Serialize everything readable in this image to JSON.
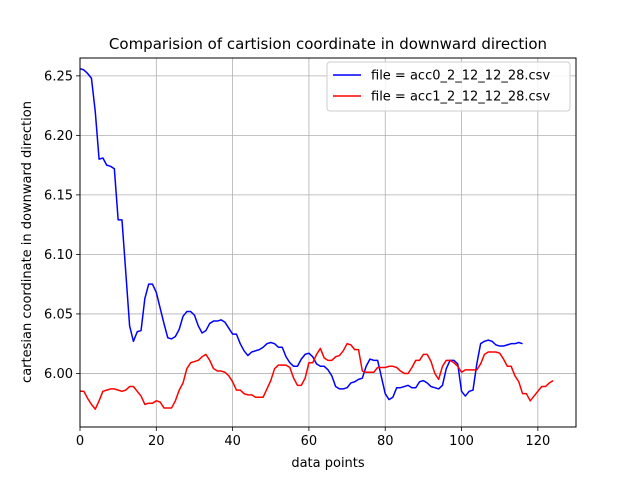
{
  "chart_data": {
    "type": "line",
    "title": "Comparision of cartision coordinate in downward direction",
    "xlabel": "data points",
    "ylabel": "cartesian coordinate in downward direction",
    "xlim": [
      0,
      130
    ],
    "ylim": [
      5.955,
      6.265
    ],
    "xticks": [
      0,
      20,
      40,
      60,
      80,
      100,
      120
    ],
    "yticks": [
      6.0,
      6.05,
      6.1,
      6.15,
      6.2,
      6.25
    ],
    "xtick_labels": [
      "0",
      "20",
      "40",
      "60",
      "80",
      "100",
      "120"
    ],
    "ytick_labels": [
      "6.00",
      "6.05",
      "6.10",
      "6.15",
      "6.20",
      "6.25"
    ],
    "grid": true,
    "legend_position": "top-right",
    "series": [
      {
        "name": "file = acc0_2_12_12_28.csv",
        "color": "#0000ff",
        "x": [
          0,
          1,
          2,
          3,
          4,
          5,
          6,
          7,
          8,
          9,
          10,
          11,
          12,
          13,
          14,
          15,
          16,
          17,
          18,
          19,
          20,
          21,
          22,
          23,
          24,
          25,
          26,
          27,
          28,
          29,
          30,
          31,
          32,
          33,
          34,
          35,
          36,
          37,
          38,
          39,
          40,
          41,
          42,
          43,
          44,
          45,
          46,
          47,
          48,
          49,
          50,
          51,
          52,
          53,
          54,
          55,
          56,
          57,
          58,
          59,
          60,
          61,
          62,
          63,
          64,
          65,
          66,
          67,
          68,
          69,
          70,
          71,
          72,
          73,
          74,
          75,
          76,
          77,
          78,
          79,
          80,
          81,
          82,
          83,
          84,
          85,
          86,
          87,
          88,
          89,
          90,
          91,
          92,
          93,
          94,
          95,
          96,
          97,
          98,
          99,
          100,
          101,
          102,
          103,
          104,
          105,
          106,
          107,
          108,
          109,
          110,
          111,
          112,
          113,
          114,
          115,
          116
        ],
        "y": [
          6.256,
          6.255,
          6.252,
          6.248,
          6.22,
          6.18,
          6.181,
          6.175,
          6.174,
          6.172,
          6.129,
          6.129,
          6.085,
          6.04,
          6.027,
          6.035,
          6.036,
          6.063,
          6.075,
          6.075,
          6.068,
          6.055,
          6.042,
          6.03,
          6.029,
          6.031,
          6.037,
          6.048,
          6.052,
          6.052,
          6.049,
          6.04,
          6.034,
          6.036,
          6.042,
          6.044,
          6.044,
          6.045,
          6.043,
          6.038,
          6.033,
          6.033,
          6.025,
          6.019,
          6.015,
          6.018,
          6.019,
          6.02,
          6.022,
          6.025,
          6.026,
          6.025,
          6.022,
          6.022,
          6.014,
          6.009,
          6.006,
          6.006,
          6.012,
          6.016,
          6.017,
          6.014,
          6.008,
          6.006,
          6.006,
          6.003,
          5.998,
          5.989,
          5.987,
          5.987,
          5.988,
          5.992,
          5.993,
          5.995,
          5.996,
          6.006,
          6.012,
          6.011,
          6.011,
          5.997,
          5.983,
          5.978,
          5.98,
          5.988,
          5.988,
          5.989,
          5.99,
          5.988,
          5.988,
          5.993,
          5.994,
          5.992,
          5.989,
          5.988,
          5.987,
          5.99,
          6.004,
          6.011,
          6.011,
          6.008,
          5.985,
          5.981,
          5.985,
          5.986,
          6.008,
          6.025,
          6.027,
          6.028,
          6.027,
          6.024,
          6.023,
          6.023,
          6.024,
          6.025,
          6.025,
          6.026,
          6.025
        ]
      },
      {
        "name": "file = acc1_2_12_12_28.csv",
        "color": "#ff0000",
        "x": [
          0,
          1,
          2,
          3,
          4,
          5,
          6,
          7,
          8,
          9,
          10,
          11,
          12,
          13,
          14,
          15,
          16,
          17,
          18,
          19,
          20,
          21,
          22,
          23,
          24,
          25,
          26,
          27,
          28,
          29,
          30,
          31,
          32,
          33,
          34,
          35,
          36,
          37,
          38,
          39,
          40,
          41,
          42,
          43,
          44,
          45,
          46,
          47,
          48,
          49,
          50,
          51,
          52,
          53,
          54,
          55,
          56,
          57,
          58,
          59,
          60,
          61,
          62,
          63,
          64,
          65,
          66,
          67,
          68,
          69,
          70,
          71,
          72,
          73,
          74,
          75,
          76,
          77,
          78,
          79,
          80,
          81,
          82,
          83,
          84,
          85,
          86,
          87,
          88,
          89,
          90,
          91,
          92,
          93,
          94,
          95,
          96,
          97,
          98,
          99,
          100,
          101,
          102,
          103,
          104,
          105,
          106,
          107,
          108,
          109,
          110,
          111,
          112,
          113,
          114,
          115,
          116,
          117,
          118,
          119,
          120,
          121,
          122,
          123,
          124
        ],
        "y": [
          5.985,
          5.985,
          5.979,
          5.974,
          5.97,
          5.977,
          5.985,
          5.986,
          5.987,
          5.987,
          5.986,
          5.985,
          5.986,
          5.989,
          5.989,
          5.985,
          5.981,
          5.974,
          5.975,
          5.975,
          5.977,
          5.976,
          5.971,
          5.971,
          5.971,
          5.977,
          5.986,
          5.992,
          6.004,
          6.009,
          6.01,
          6.011,
          6.014,
          6.016,
          6.011,
          6.004,
          6.002,
          6.002,
          6.001,
          5.998,
          5.993,
          5.986,
          5.986,
          5.983,
          5.982,
          5.982,
          5.98,
          5.98,
          5.98,
          5.987,
          5.994,
          6.004,
          6.007,
          6.007,
          6.007,
          6.005,
          5.996,
          5.99,
          5.99,
          5.996,
          6.009,
          6.009,
          6.016,
          6.021,
          6.013,
          6.011,
          6.011,
          6.014,
          6.015,
          6.019,
          6.025,
          6.024,
          6.02,
          6.02,
          6.002,
          6.001,
          6.001,
          6.001,
          6.005,
          6.005,
          6.005,
          6.006,
          6.006,
          6.005,
          6.002,
          6.0,
          6.0,
          6.005,
          6.011,
          6.011,
          6.016,
          6.016,
          6.01,
          6.0,
          5.995,
          6.006,
          6.011,
          6.011,
          6.009,
          6.006,
          6.001,
          6.003,
          6.003,
          6.003,
          6.003,
          6.008,
          6.016,
          6.018,
          6.018,
          6.018,
          6.017,
          6.012,
          6.006,
          6.006,
          5.998,
          5.993,
          5.983,
          5.983,
          5.977,
          5.981,
          5.985,
          5.989,
          5.989,
          5.992,
          5.994
        ]
      }
    ]
  }
}
